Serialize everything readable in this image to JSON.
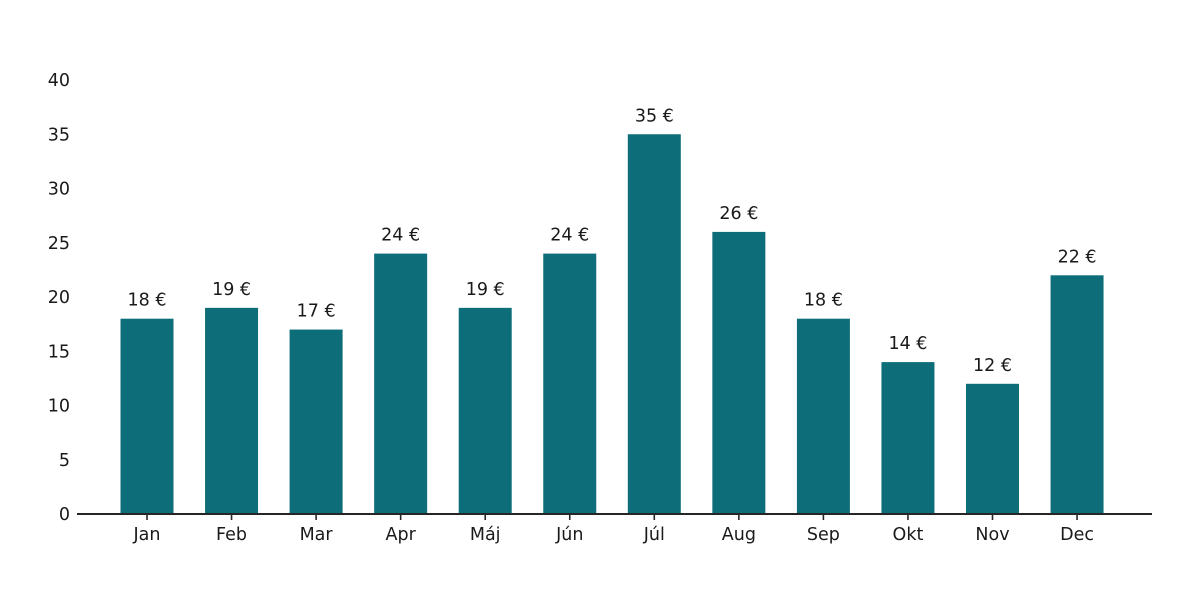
{
  "chart_data": {
    "type": "bar",
    "title": "",
    "xlabel": "",
    "ylabel": "",
    "categories": [
      "Jan",
      "Feb",
      "Mar",
      "Apr",
      "Máj",
      "Jún",
      "Júl",
      "Aug",
      "Sep",
      "Okt",
      "Nov",
      "Dec"
    ],
    "values": [
      18,
      19,
      17,
      24,
      19,
      24,
      35,
      26,
      18,
      14,
      12,
      22
    ],
    "value_labels": [
      "18 €",
      "19 €",
      "17 €",
      "24 €",
      "19 €",
      "24 €",
      "35 €",
      "26 €",
      "18 €",
      "14 €",
      "12 €",
      "22 €"
    ],
    "ylim": [
      0,
      40
    ],
    "yticks": [
      0,
      5,
      10,
      15,
      20,
      25,
      30,
      35,
      40
    ],
    "grid": false,
    "legend": "none",
    "bar_color": "#0d6e79",
    "axis_color": "#262626",
    "text_color": "#1a1a1a",
    "background": "#ffffff"
  }
}
